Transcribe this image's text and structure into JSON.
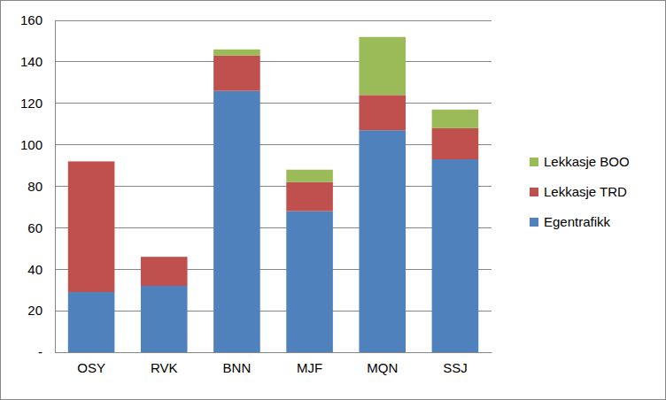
{
  "chart_data": {
    "type": "bar",
    "stacked": true,
    "grid": true,
    "legend": "right",
    "categories": [
      "OSY",
      "RVK",
      "BNN",
      "MJF",
      "MQN",
      "SSJ"
    ],
    "series": [
      {
        "name": "Egentrafikk",
        "color": "#4f81bd",
        "values": [
          29,
          32,
          126,
          68,
          107,
          93
        ]
      },
      {
        "name": "Lekkasje TRD",
        "color": "#c0504d",
        "values": [
          63,
          14,
          17,
          14,
          17,
          15
        ]
      },
      {
        "name": "Lekkasje BOO",
        "color": "#9bbb59",
        "values": [
          0,
          0,
          3,
          6,
          28,
          9
        ]
      }
    ],
    "ylim": [
      0,
      160
    ],
    "yticks": [
      {
        "value": 0,
        "label": "-"
      },
      20,
      40,
      60,
      80,
      100,
      120,
      140,
      160
    ]
  }
}
